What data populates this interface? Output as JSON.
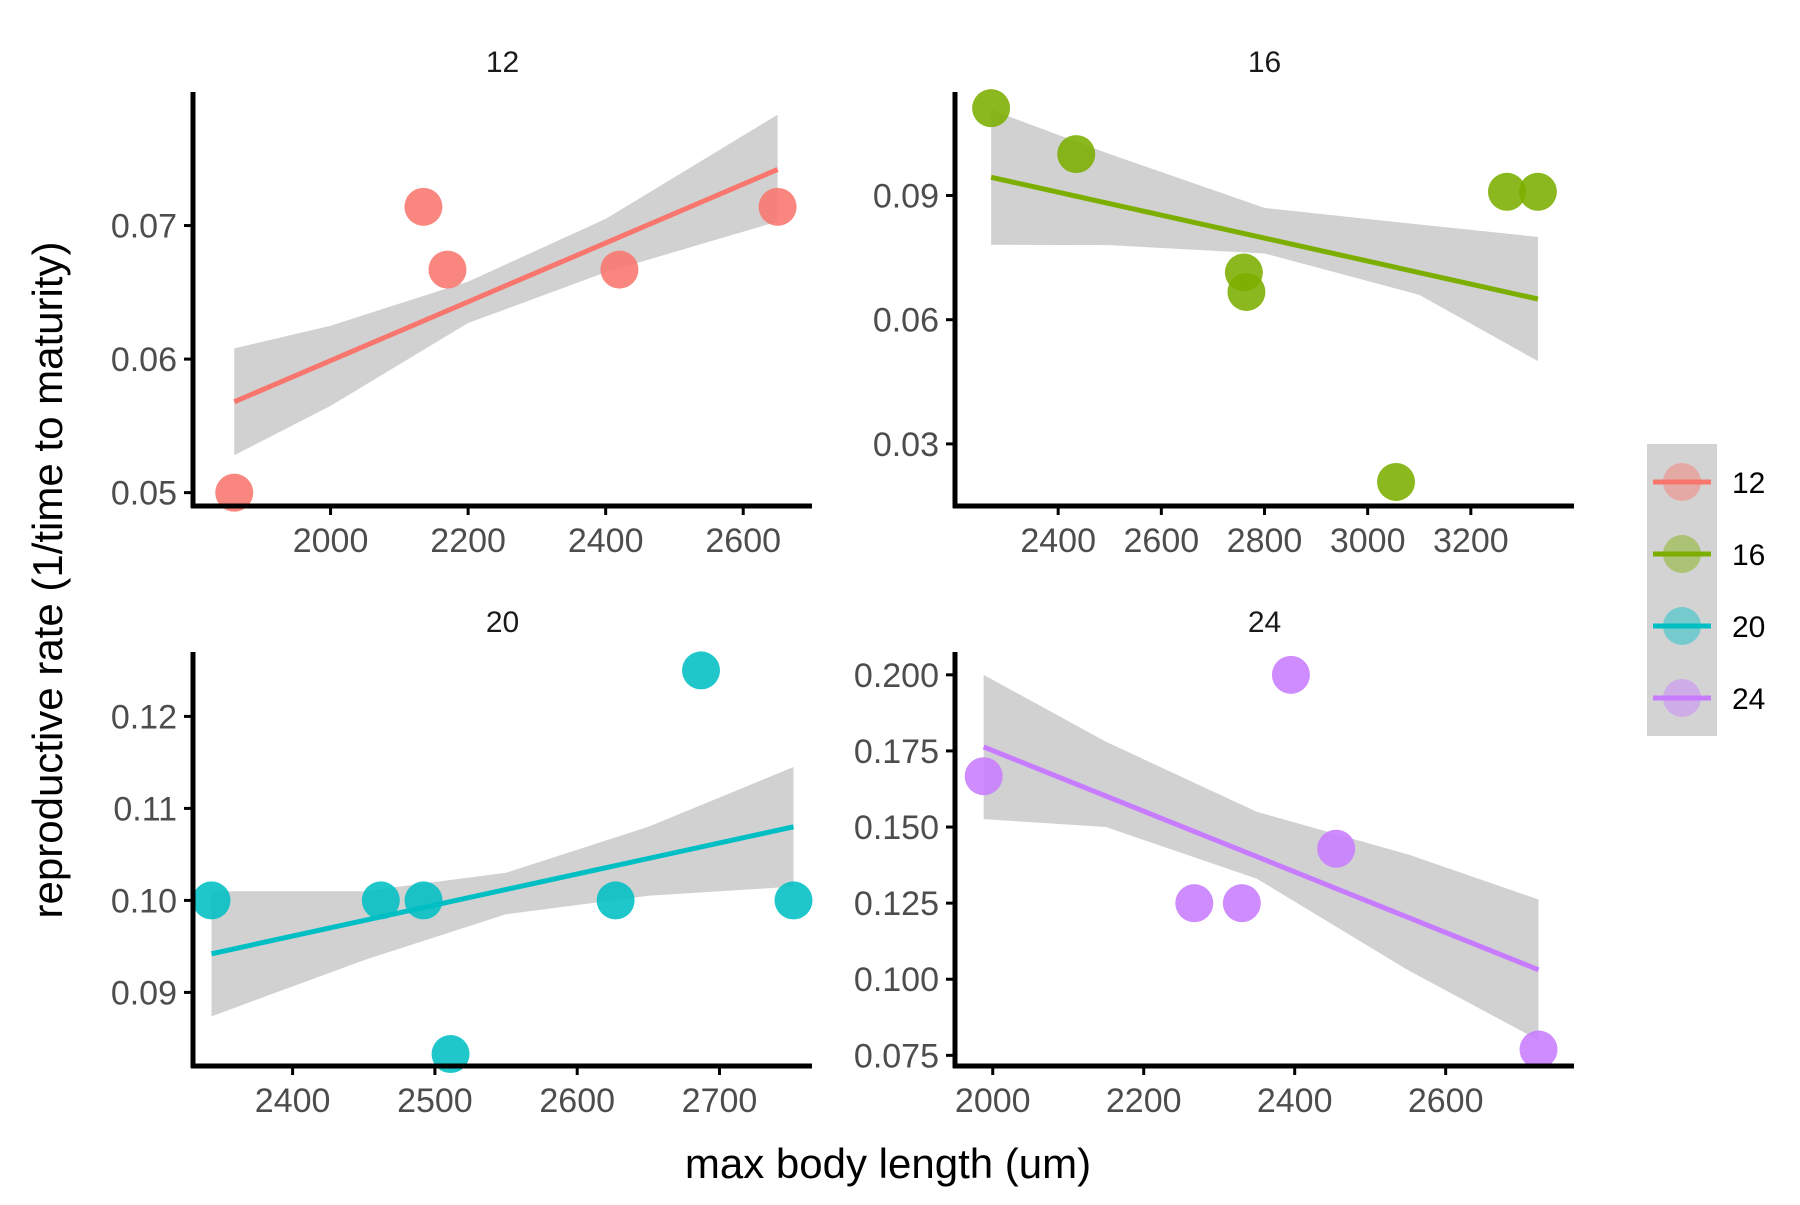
{
  "chart_data": {
    "type": "scatter",
    "xlabel": "max body length (um)",
    "ylabel": "reproductive rate (1/time to maturity)",
    "legend": {
      "placement": "right",
      "entries": [
        {
          "label": "12",
          "color": "#F8766D"
        },
        {
          "label": "16",
          "color": "#7CAE00"
        },
        {
          "label": "20",
          "color": "#00BFC4"
        },
        {
          "label": "24",
          "color": "#C77CFF"
        }
      ]
    },
    "panels": [
      {
        "title": "12",
        "color": "#F8766D",
        "xlim": [
          1800,
          2700
        ],
        "ylim": [
          0.049,
          0.08
        ],
        "xticks": [
          2000,
          2200,
          2400,
          2600
        ],
        "yticks": [
          0.05,
          0.06,
          0.07
        ],
        "yprec": 2,
        "points": [
          [
            1860,
            0.05
          ],
          [
            2135,
            0.0714
          ],
          [
            2170,
            0.0667
          ],
          [
            2420,
            0.0667
          ],
          [
            2650,
            0.0714
          ]
        ],
        "fit": {
          "x": [
            1860,
            2650
          ],
          "y": [
            0.0568,
            0.0742
          ]
        },
        "band": {
          "x": [
            1860,
            2000,
            2200,
            2400,
            2650
          ],
          "upper": [
            0.0608,
            0.0625,
            0.0658,
            0.0705,
            0.0783
          ],
          "lower": [
            0.0528,
            0.0565,
            0.0627,
            0.0665,
            0.0703
          ]
        }
      },
      {
        "title": "16",
        "color": "#7CAE00",
        "xlim": [
          2200,
          3400
        ],
        "ylim": [
          0.015,
          0.115
        ],
        "xticks": [
          2400,
          2600,
          2800,
          3000,
          3200
        ],
        "yticks": [
          0.03,
          0.06,
          0.09
        ],
        "yprec": 2,
        "points": [
          [
            2270,
            0.1111
          ],
          [
            2435,
            0.1
          ],
          [
            2760,
            0.0714
          ],
          [
            2765,
            0.0667
          ],
          [
            3055,
            0.0208
          ],
          [
            3270,
            0.0909
          ],
          [
            3330,
            0.0909
          ]
        ],
        "fit": {
          "x": [
            2270,
            3330
          ],
          "y": [
            0.0944,
            0.065
          ]
        },
        "band": {
          "x": [
            2270,
            2500,
            2800,
            3100,
            3330
          ],
          "upper": [
            0.1107,
            0.1,
            0.087,
            0.083,
            0.08
          ],
          "lower": [
            0.0781,
            0.078,
            0.076,
            0.066,
            0.05
          ]
        }
      },
      {
        "title": "20",
        "color": "#00BFC4",
        "xlim": [
          2330,
          2765
        ],
        "ylim": [
          0.082,
          0.127
        ],
        "xticks": [
          2400,
          2500,
          2600,
          2700
        ],
        "yticks": [
          0.09,
          0.1,
          0.11,
          0.12
        ],
        "yprec": 2,
        "points": [
          [
            2343,
            0.1
          ],
          [
            2462,
            0.1
          ],
          [
            2492,
            0.1
          ],
          [
            2511,
            0.0833
          ],
          [
            2627,
            0.1
          ],
          [
            2687,
            0.125
          ],
          [
            2752,
            0.1
          ]
        ],
        "fit": {
          "x": [
            2343,
            2752
          ],
          "y": [
            0.0942,
            0.108
          ]
        },
        "band": {
          "x": [
            2343,
            2450,
            2550,
            2650,
            2752
          ],
          "upper": [
            0.101,
            0.101,
            0.103,
            0.108,
            0.1145
          ],
          "lower": [
            0.0874,
            0.0935,
            0.0985,
            0.1005,
            0.1015
          ]
        }
      },
      {
        "title": "24",
        "color": "#C77CFF",
        "xlim": [
          1950,
          2770
        ],
        "ylim": [
          0.0715,
          0.2075
        ],
        "xticks": [
          2000,
          2200,
          2400,
          2600
        ],
        "yticks": [
          0.075,
          0.1,
          0.125,
          0.15,
          0.175,
          0.2
        ],
        "yprec": 3,
        "points": [
          [
            1988,
            0.1667
          ],
          [
            2267,
            0.125
          ],
          [
            2330,
            0.125
          ],
          [
            2395,
            0.2
          ],
          [
            2455,
            0.1429
          ],
          [
            2723,
            0.0769
          ]
        ],
        "fit": {
          "x": [
            1988,
            2723
          ],
          "y": [
            0.1763,
            0.1031
          ]
        },
        "band": {
          "x": [
            1988,
            2150,
            2350,
            2550,
            2723
          ],
          "upper": [
            0.2,
            0.178,
            0.155,
            0.141,
            0.1262
          ],
          "lower": [
            0.1526,
            0.15,
            0.133,
            0.103,
            0.08
          ]
        }
      }
    ]
  }
}
